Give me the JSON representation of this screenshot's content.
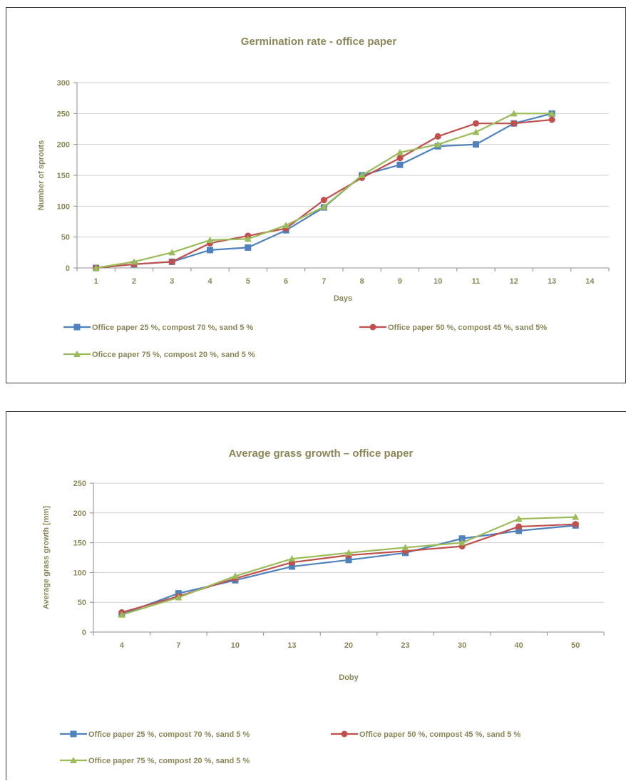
{
  "chart_data": [
    {
      "type": "line",
      "title": "Germination rate - office paper",
      "xlabel": "Days",
      "ylabel": "Number of sprouts",
      "categories": [
        "1",
        "2",
        "3",
        "4",
        "5",
        "6",
        "7",
        "8",
        "9",
        "10",
        "11",
        "12",
        "13",
        "14"
      ],
      "yticks": [
        "0",
        "50",
        "100",
        "150",
        "200",
        "250",
        "300"
      ],
      "ylim": [
        0,
        300
      ],
      "grid": true,
      "legend_position": "bottom",
      "series": [
        {
          "name": "Office paper 25 %, compost 70 %, sand 5 %",
          "color": "#4f81bd",
          "marker": "square",
          "values": [
            0,
            6,
            10,
            29,
            33,
            61,
            98,
            150,
            167,
            197,
            200,
            234,
            250,
            null
          ]
        },
        {
          "name": "Office paper 50 %, compost 45 %, sand 5%",
          "color": "#c0504d",
          "marker": "circle",
          "values": [
            0,
            6,
            10,
            40,
            52,
            64,
            110,
            146,
            178,
            213,
            234,
            234,
            240,
            null
          ]
        },
        {
          "name": "Oficce paper 75 %, compost 20 %, sand 5 %",
          "color": "#9bbb59",
          "marker": "triangle",
          "values": [
            0,
            10,
            25,
            45,
            47,
            69,
            99,
            150,
            187,
            200,
            220,
            250,
            250,
            null
          ]
        }
      ]
    },
    {
      "type": "line",
      "title": "Average grass growth – office paper",
      "xlabel": "Doby",
      "ylabel": "Average grass growth [mm]",
      "categories": [
        "4",
        "7",
        "10",
        "13",
        "20",
        "23",
        "30",
        "40",
        "50"
      ],
      "yticks": [
        "0",
        "50",
        "100",
        "150",
        "200",
        "250"
      ],
      "ylim": [
        0,
        250
      ],
      "grid": true,
      "legend_position": "bottom",
      "series": [
        {
          "name": "Office paper 25 %, compost 70 %, sand 5 %",
          "color": "#4f81bd",
          "marker": "square",
          "values": [
            30,
            65,
            87,
            110,
            121,
            133,
            157,
            170,
            179
          ]
        },
        {
          "name": "Office paper 50 %, compost 45 %, sand 5 %",
          "color": "#c0504d",
          "marker": "circle",
          "values": [
            33,
            60,
            90,
            117,
            129,
            136,
            144,
            177,
            181
          ]
        },
        {
          "name": "Office paper 75 %, compost 20 %, sand 5 %",
          "color": "#9bbb59",
          "marker": "triangle",
          "values": [
            29,
            58,
            94,
            123,
            133,
            142,
            150,
            190,
            193
          ]
        }
      ]
    }
  ]
}
